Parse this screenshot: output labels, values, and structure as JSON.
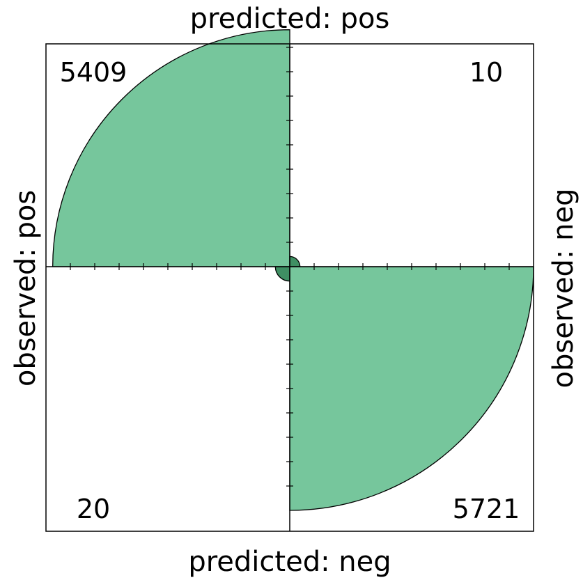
{
  "chart_data": {
    "type": "fourfold",
    "titles": {
      "top": "predicted: pos",
      "bottom": "predicted: neg",
      "left": "observed: pos",
      "right": "observed: neg"
    },
    "cells": [
      {
        "id": "observed_pos_predicted_pos",
        "row": "pos",
        "col": "pos",
        "value": 5409,
        "label": "5409",
        "quadrant": "top-left"
      },
      {
        "id": "observed_neg_predicted_pos",
        "row": "neg",
        "col": "pos",
        "value": 10,
        "label": "10",
        "quadrant": "top-right"
      },
      {
        "id": "observed_pos_predicted_neg",
        "row": "pos",
        "col": "neg",
        "value": 20,
        "label": "20",
        "quadrant": "bottom-left"
      },
      {
        "id": "observed_neg_predicted_neg",
        "row": "neg",
        "col": "neg",
        "value": 5721,
        "label": "5721",
        "quadrant": "bottom-right"
      }
    ],
    "colors": {
      "fill": "#76c69c",
      "fill_small": "#3f8f63",
      "stroke": "#000000"
    },
    "tick_count": 10
  }
}
